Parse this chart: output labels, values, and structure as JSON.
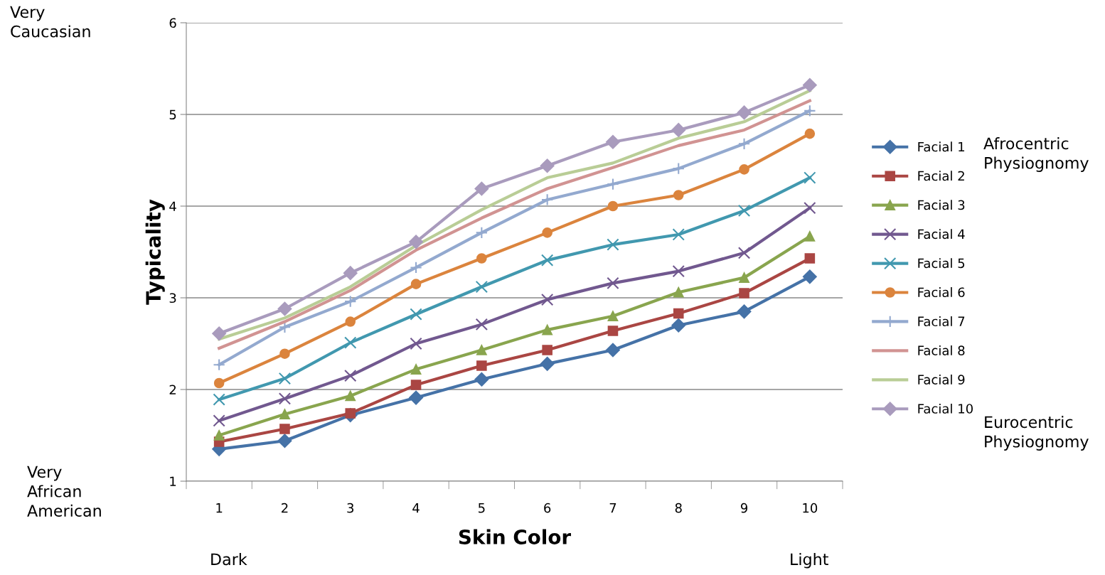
{
  "chart_data": {
    "type": "line",
    "xlabel": "Skin Color",
    "ylabel": "Typicality",
    "categories": [
      "1",
      "2",
      "3",
      "4",
      "5",
      "6",
      "7",
      "8",
      "9",
      "10"
    ],
    "ylim": [
      1,
      6
    ],
    "yticks": [
      1,
      2,
      3,
      4,
      5,
      6
    ],
    "grid": "y",
    "legend": "right",
    "line_style": "solid",
    "annotations": [
      "Very\nCaucasian",
      "Very\nAfrican\nAmerican",
      "Dark",
      "Light",
      "Afrocentric\nPhysiognomy",
      "Eurocentric\nPhysiognomy"
    ],
    "series": [
      {
        "name": "Facial 1",
        "color": "#4572a7",
        "marker": "diamond",
        "values": [
          1.35,
          1.44,
          1.72,
          1.91,
          2.11,
          2.28,
          2.43,
          2.7,
          2.85,
          3.23
        ]
      },
      {
        "name": "Facial 2",
        "color": "#aa4643",
        "marker": "square",
        "values": [
          1.43,
          1.57,
          1.74,
          2.05,
          2.26,
          2.43,
          2.64,
          2.83,
          3.05,
          3.43
        ]
      },
      {
        "name": "Facial 3",
        "color": "#89a54e",
        "marker": "triangle",
        "values": [
          1.5,
          1.73,
          1.93,
          2.22,
          2.43,
          2.65,
          2.8,
          3.06,
          3.22,
          3.67
        ]
      },
      {
        "name": "Facial 4",
        "color": "#71588f",
        "marker": "cross",
        "values": [
          1.66,
          1.9,
          2.15,
          2.5,
          2.71,
          2.98,
          3.16,
          3.29,
          3.49,
          3.98
        ]
      },
      {
        "name": "Facial 5",
        "color": "#4198af",
        "marker": "cross",
        "values": [
          1.89,
          2.12,
          2.51,
          2.82,
          3.12,
          3.41,
          3.58,
          3.69,
          3.95,
          4.31
        ]
      },
      {
        "name": "Facial 6",
        "color": "#db843d",
        "marker": "circle",
        "values": [
          2.07,
          2.39,
          2.74,
          3.15,
          3.43,
          3.71,
          4.0,
          4.12,
          4.4,
          4.79
        ]
      },
      {
        "name": "Facial 7",
        "color": "#93a9cf",
        "marker": "plus",
        "values": [
          2.27,
          2.68,
          2.96,
          3.33,
          3.71,
          4.07,
          4.24,
          4.41,
          4.68,
          5.04
        ]
      },
      {
        "name": "Facial 8",
        "color": "#d19392",
        "marker": "none",
        "values": [
          2.45,
          2.74,
          3.08,
          3.52,
          3.87,
          4.19,
          4.42,
          4.66,
          4.83,
          5.15
        ]
      },
      {
        "name": "Facial 9",
        "color": "#b9cd96",
        "marker": "none",
        "values": [
          2.55,
          2.78,
          3.12,
          3.57,
          3.96,
          4.31,
          4.47,
          4.74,
          4.92,
          5.26
        ]
      },
      {
        "name": "Facial 10",
        "color": "#a99bbd",
        "marker": "diamond",
        "values": [
          2.61,
          2.88,
          3.27,
          3.61,
          4.19,
          4.44,
          4.7,
          4.83,
          5.02,
          5.32
        ]
      }
    ]
  }
}
